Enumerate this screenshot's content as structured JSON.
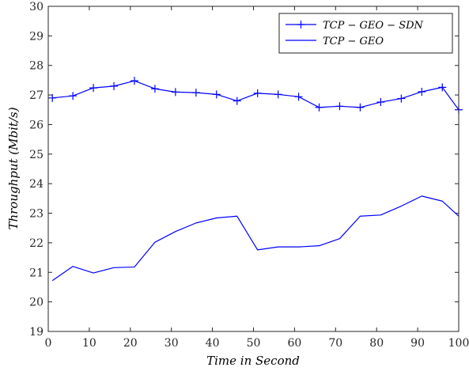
{
  "chart_data": {
    "type": "line",
    "title": "",
    "xlabel": "Time in Second",
    "ylabel": "Throughput (Mbit/s)",
    "xlim": [
      0,
      100
    ],
    "ylim": [
      19,
      30
    ],
    "xticks": [
      0,
      10,
      20,
      30,
      40,
      50,
      60,
      70,
      80,
      90,
      100
    ],
    "yticks": [
      19,
      20,
      21,
      22,
      23,
      24,
      25,
      26,
      27,
      28,
      29,
      30
    ],
    "grid": false,
    "legend_position": "top-right",
    "x": [
      1,
      6,
      11,
      16,
      21,
      26,
      31,
      36,
      41,
      46,
      51,
      56,
      61,
      66,
      71,
      76,
      81,
      86,
      91,
      96,
      100
    ],
    "series": [
      {
        "name": "TCP − GEO − SDN",
        "color": "#0000ff",
        "marker": "plus",
        "values": [
          26.9,
          26.97,
          27.24,
          27.3,
          27.48,
          27.21,
          27.1,
          27.08,
          27.02,
          26.8,
          27.06,
          27.02,
          26.94,
          26.58,
          26.62,
          26.58,
          26.76,
          26.88,
          27.11,
          27.26,
          26.5
        ]
      },
      {
        "name": "TCP − GEO",
        "color": "#0000ff",
        "marker": "none",
        "values": [
          20.72,
          21.2,
          20.98,
          21.16,
          21.18,
          22.02,
          22.38,
          22.67,
          22.84,
          22.9,
          21.76,
          21.86,
          21.86,
          21.9,
          22.14,
          22.9,
          22.94,
          23.24,
          23.58,
          23.41,
          22.9
        ]
      }
    ]
  }
}
